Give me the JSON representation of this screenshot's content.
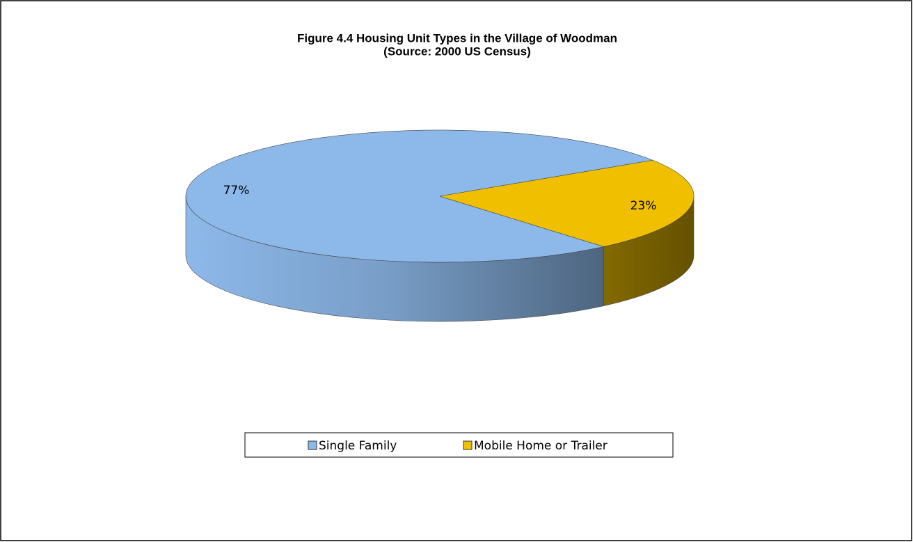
{
  "chart_data": {
    "type": "pie",
    "title": "Figure 4.4 Housing Unit Types in the Village of Woodman",
    "subtitle": "(Source: 2000 US Census)",
    "categories": [
      "Single Family",
      "Mobile Home or Trailer"
    ],
    "values": [
      77,
      23
    ],
    "value_labels": [
      "77%",
      "23%"
    ],
    "colors": [
      "#8DB9EA",
      "#F0C000"
    ],
    "legend": "bottom"
  }
}
